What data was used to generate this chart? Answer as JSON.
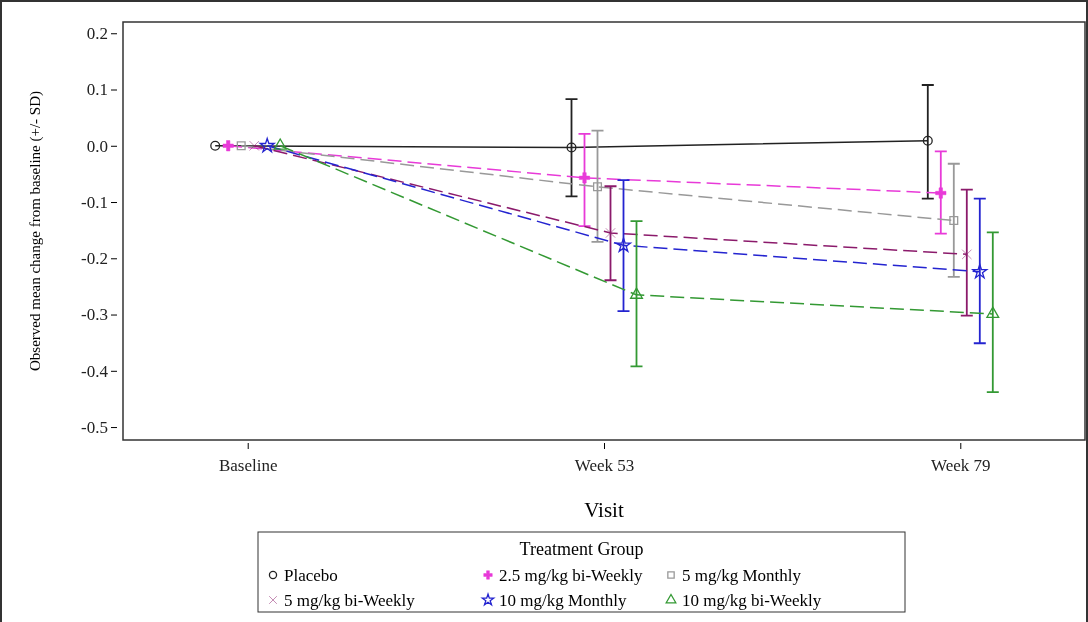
{
  "chart_data": {
    "type": "line",
    "xlabel": "Visit",
    "ylabel": "Observed mean change from baseline (+/- SD)",
    "legend_title": "Treatment Group",
    "legend": "bottom",
    "grid": false,
    "categories": [
      "Baseline",
      "Week 53",
      "Week 79"
    ],
    "ylim": [
      -0.523,
      0.22
    ],
    "yticks": [
      {
        "value": 0.2,
        "label": "0.2"
      },
      {
        "value": 0.1,
        "label": "0.1"
      },
      {
        "value": 0,
        "label": "0.0"
      },
      {
        "value": -0.1,
        "label": "-0.1"
      },
      {
        "value": -0.2,
        "label": "-0.2"
      },
      {
        "value": -0.3,
        "label": "-0.3"
      },
      {
        "value": -0.4,
        "label": "-0.4"
      },
      {
        "value": -0.5,
        "label": "-0.5"
      }
    ],
    "series": [
      {
        "name": "Placebo",
        "color": "#222222",
        "marker": "circle",
        "line_style": "solid",
        "values": [
          0,
          -0.003,
          0.009
        ],
        "errors": [
          null,
          [
            -0.09,
            0.083
          ],
          [
            -0.094,
            0.108
          ]
        ]
      },
      {
        "name": "2.5 mg/kg bi-Weekly",
        "color": "#e83ad8",
        "marker": "cross",
        "line_style": "dashed",
        "values": [
          0,
          -0.057,
          -0.084
        ],
        "errors": [
          null,
          [
            -0.143,
            0.021
          ],
          [
            -0.156,
            -0.01
          ]
        ]
      },
      {
        "name": "5 mg/kg Monthly",
        "color": "#999999",
        "marker": "square",
        "line_style": "dashed",
        "values": [
          0,
          -0.073,
          -0.133
        ],
        "errors": [
          null,
          [
            -0.171,
            0.027
          ],
          [
            -0.233,
            -0.032
          ]
        ]
      },
      {
        "name": "5 mg/kg bi-Weekly",
        "color": "#8b1a6b",
        "marker": "x",
        "line_style": "dashed",
        "values": [
          0,
          -0.155,
          -0.193
        ],
        "errors": [
          null,
          [
            -0.239,
            -0.072
          ],
          [
            -0.302,
            -0.078
          ]
        ]
      },
      {
        "name": "10 mg/kg Monthly",
        "color": "#2424d0",
        "marker": "star",
        "line_style": "dashed",
        "values": [
          0,
          -0.177,
          -0.224
        ],
        "errors": [
          null,
          [
            -0.294,
            -0.061
          ],
          [
            -0.351,
            -0.094
          ]
        ]
      },
      {
        "name": "10 mg/kg bi-Weekly",
        "color": "#339933",
        "marker": "triangle",
        "line_style": "dashed",
        "values": [
          0,
          -0.265,
          -0.299
        ],
        "errors": [
          null,
          [
            -0.392,
            -0.134
          ],
          [
            -0.438,
            -0.154
          ]
        ]
      }
    ]
  }
}
